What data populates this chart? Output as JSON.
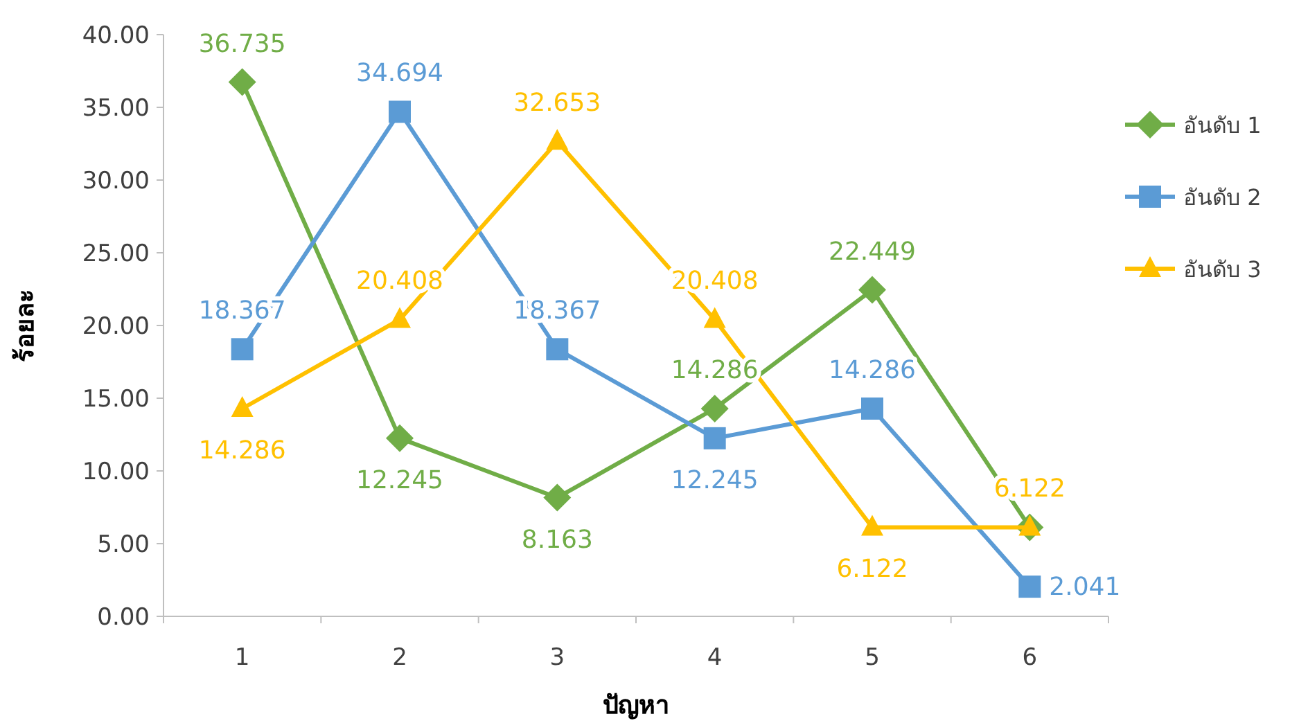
{
  "chart_data": {
    "type": "line",
    "xlabel": "ปัญหา",
    "ylabel": "ร้อยละ",
    "categories": [
      "1",
      "2",
      "3",
      "4",
      "5",
      "6"
    ],
    "ylim": [
      0,
      40
    ],
    "yticks": [
      {
        "value": 0,
        "label": "0.00"
      },
      {
        "value": 5,
        "label": "5.00"
      },
      {
        "value": 10,
        "label": "10.00"
      },
      {
        "value": 15,
        "label": "15.00"
      },
      {
        "value": 20,
        "label": "20.00"
      },
      {
        "value": 25,
        "label": "25.00"
      },
      {
        "value": 30,
        "label": "30.00"
      },
      {
        "value": 35,
        "label": "35.00"
      },
      {
        "value": 40,
        "label": "40.00"
      }
    ],
    "grid": false,
    "legend": "right",
    "series": [
      {
        "name": "อันดับ 1",
        "color": "#70ad47",
        "marker": "diamond",
        "values": [
          36.735,
          12.245,
          8.163,
          14.286,
          22.449,
          6.122
        ],
        "value_labels": [
          "36.735",
          "12.245",
          "8.163",
          "14.286",
          "22.449",
          null
        ]
      },
      {
        "name": "อันดับ 2",
        "color": "#5b9bd5",
        "marker": "square",
        "values": [
          18.367,
          34.694,
          18.367,
          12.245,
          14.286,
          2.041
        ],
        "value_labels": [
          "18.367",
          "34.694",
          "18.367",
          "12.245",
          "14.286",
          "2.041"
        ]
      },
      {
        "name": "อันดับ 3",
        "color": "#ffc000",
        "marker": "triangle",
        "values": [
          14.286,
          20.408,
          32.653,
          20.408,
          6.122,
          6.122
        ],
        "value_labels": [
          "14.286",
          "20.408",
          "32.653",
          "20.408",
          "6.122",
          "6.122"
        ]
      }
    ]
  }
}
